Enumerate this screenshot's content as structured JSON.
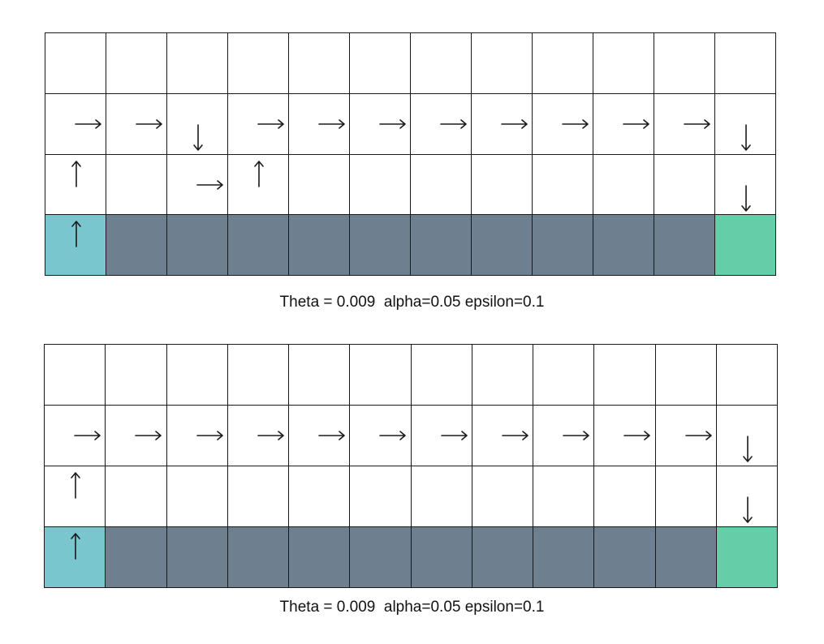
{
  "colors": {
    "start": "#79c6cf",
    "cliff": "#6e7f8f",
    "goal": "#65cda8",
    "empty": "#ffffff",
    "line": "#1a1a1a"
  },
  "grids": [
    {
      "caption": "Theta = 0.009  alpha=0.05 epsilon=0.1",
      "cell_types": [
        [
          "empty",
          "empty",
          "empty",
          "empty",
          "empty",
          "empty",
          "empty",
          "empty",
          "empty",
          "empty",
          "empty",
          "empty"
        ],
        [
          "empty",
          "empty",
          "empty",
          "empty",
          "empty",
          "empty",
          "empty",
          "empty",
          "empty",
          "empty",
          "empty",
          "empty"
        ],
        [
          "empty",
          "empty",
          "empty",
          "empty",
          "empty",
          "empty",
          "empty",
          "empty",
          "empty",
          "empty",
          "empty",
          "empty"
        ],
        [
          "start",
          "cliff",
          "cliff",
          "cliff",
          "cliff",
          "cliff",
          "cliff",
          "cliff",
          "cliff",
          "cliff",
          "cliff",
          "goal"
        ]
      ],
      "policy": [
        [
          "",
          "",
          "",
          "",
          "",
          "",
          "",
          "",
          "",
          "",
          "",
          ""
        ],
        [
          "right",
          "right",
          "down",
          "right",
          "right",
          "right",
          "right",
          "right",
          "right",
          "right",
          "right",
          "down"
        ],
        [
          "up",
          "",
          "right",
          "up",
          "",
          "",
          "",
          "",
          "",
          "",
          "",
          "down"
        ],
        [
          "up",
          "",
          "",
          "",
          "",
          "",
          "",
          "",
          "",
          "",
          "",
          ""
        ]
      ]
    },
    {
      "caption": "Theta = 0.009  alpha=0.05 epsilon=0.1",
      "cell_types": [
        [
          "empty",
          "empty",
          "empty",
          "empty",
          "empty",
          "empty",
          "empty",
          "empty",
          "empty",
          "empty",
          "empty",
          "empty"
        ],
        [
          "empty",
          "empty",
          "empty",
          "empty",
          "empty",
          "empty",
          "empty",
          "empty",
          "empty",
          "empty",
          "empty",
          "empty"
        ],
        [
          "empty",
          "empty",
          "empty",
          "empty",
          "empty",
          "empty",
          "empty",
          "empty",
          "empty",
          "empty",
          "empty",
          "empty"
        ],
        [
          "start",
          "cliff",
          "cliff",
          "cliff",
          "cliff",
          "cliff",
          "cliff",
          "cliff",
          "cliff",
          "cliff",
          "cliff",
          "goal"
        ]
      ],
      "policy": [
        [
          "",
          "",
          "",
          "",
          "",
          "",
          "",
          "",
          "",
          "",
          "",
          ""
        ],
        [
          "right",
          "right",
          "right",
          "right",
          "right",
          "right",
          "right",
          "right",
          "right",
          "right",
          "right",
          "down"
        ],
        [
          "up",
          "",
          "",
          "",
          "",
          "",
          "",
          "",
          "",
          "",
          "",
          "down"
        ],
        [
          "up",
          "",
          "",
          "",
          "",
          "",
          "",
          "",
          "",
          "",
          "",
          ""
        ]
      ]
    }
  ]
}
